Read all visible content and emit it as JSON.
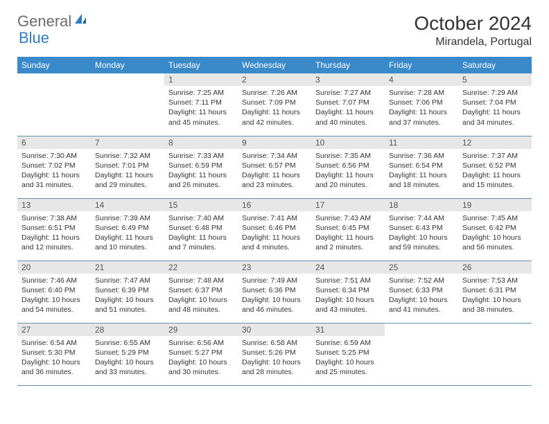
{
  "brand": {
    "part1": "General",
    "part2": "Blue"
  },
  "title": "October 2024",
  "location": "Mirandela, Portugal",
  "colors": {
    "header_bg": "#3a89c9",
    "header_text": "#ffffff",
    "daynum_bg": "#e7e7e7",
    "border": "#6b8fa8",
    "logo_gray": "#6b6b6b",
    "logo_blue": "#2f7bc4"
  },
  "weekdays": [
    "Sunday",
    "Monday",
    "Tuesday",
    "Wednesday",
    "Thursday",
    "Friday",
    "Saturday"
  ],
  "weeks": [
    [
      null,
      null,
      {
        "n": "1",
        "sr": "Sunrise: 7:25 AM",
        "ss": "Sunset: 7:11 PM",
        "dl": "Daylight: 11 hours and 45 minutes."
      },
      {
        "n": "2",
        "sr": "Sunrise: 7:26 AM",
        "ss": "Sunset: 7:09 PM",
        "dl": "Daylight: 11 hours and 42 minutes."
      },
      {
        "n": "3",
        "sr": "Sunrise: 7:27 AM",
        "ss": "Sunset: 7:07 PM",
        "dl": "Daylight: 11 hours and 40 minutes."
      },
      {
        "n": "4",
        "sr": "Sunrise: 7:28 AM",
        "ss": "Sunset: 7:06 PM",
        "dl": "Daylight: 11 hours and 37 minutes."
      },
      {
        "n": "5",
        "sr": "Sunrise: 7:29 AM",
        "ss": "Sunset: 7:04 PM",
        "dl": "Daylight: 11 hours and 34 minutes."
      }
    ],
    [
      {
        "n": "6",
        "sr": "Sunrise: 7:30 AM",
        "ss": "Sunset: 7:02 PM",
        "dl": "Daylight: 11 hours and 31 minutes."
      },
      {
        "n": "7",
        "sr": "Sunrise: 7:32 AM",
        "ss": "Sunset: 7:01 PM",
        "dl": "Daylight: 11 hours and 29 minutes."
      },
      {
        "n": "8",
        "sr": "Sunrise: 7:33 AM",
        "ss": "Sunset: 6:59 PM",
        "dl": "Daylight: 11 hours and 26 minutes."
      },
      {
        "n": "9",
        "sr": "Sunrise: 7:34 AM",
        "ss": "Sunset: 6:57 PM",
        "dl": "Daylight: 11 hours and 23 minutes."
      },
      {
        "n": "10",
        "sr": "Sunrise: 7:35 AM",
        "ss": "Sunset: 6:56 PM",
        "dl": "Daylight: 11 hours and 20 minutes."
      },
      {
        "n": "11",
        "sr": "Sunrise: 7:36 AM",
        "ss": "Sunset: 6:54 PM",
        "dl": "Daylight: 11 hours and 18 minutes."
      },
      {
        "n": "12",
        "sr": "Sunrise: 7:37 AM",
        "ss": "Sunset: 6:52 PM",
        "dl": "Daylight: 11 hours and 15 minutes."
      }
    ],
    [
      {
        "n": "13",
        "sr": "Sunrise: 7:38 AM",
        "ss": "Sunset: 6:51 PM",
        "dl": "Daylight: 11 hours and 12 minutes."
      },
      {
        "n": "14",
        "sr": "Sunrise: 7:39 AM",
        "ss": "Sunset: 6:49 PM",
        "dl": "Daylight: 11 hours and 10 minutes."
      },
      {
        "n": "15",
        "sr": "Sunrise: 7:40 AM",
        "ss": "Sunset: 6:48 PM",
        "dl": "Daylight: 11 hours and 7 minutes."
      },
      {
        "n": "16",
        "sr": "Sunrise: 7:41 AM",
        "ss": "Sunset: 6:46 PM",
        "dl": "Daylight: 11 hours and 4 minutes."
      },
      {
        "n": "17",
        "sr": "Sunrise: 7:43 AM",
        "ss": "Sunset: 6:45 PM",
        "dl": "Daylight: 11 hours and 2 minutes."
      },
      {
        "n": "18",
        "sr": "Sunrise: 7:44 AM",
        "ss": "Sunset: 6:43 PM",
        "dl": "Daylight: 10 hours and 59 minutes."
      },
      {
        "n": "19",
        "sr": "Sunrise: 7:45 AM",
        "ss": "Sunset: 6:42 PM",
        "dl": "Daylight: 10 hours and 56 minutes."
      }
    ],
    [
      {
        "n": "20",
        "sr": "Sunrise: 7:46 AM",
        "ss": "Sunset: 6:40 PM",
        "dl": "Daylight: 10 hours and 54 minutes."
      },
      {
        "n": "21",
        "sr": "Sunrise: 7:47 AM",
        "ss": "Sunset: 6:39 PM",
        "dl": "Daylight: 10 hours and 51 minutes."
      },
      {
        "n": "22",
        "sr": "Sunrise: 7:48 AM",
        "ss": "Sunset: 6:37 PM",
        "dl": "Daylight: 10 hours and 48 minutes."
      },
      {
        "n": "23",
        "sr": "Sunrise: 7:49 AM",
        "ss": "Sunset: 6:36 PM",
        "dl": "Daylight: 10 hours and 46 minutes."
      },
      {
        "n": "24",
        "sr": "Sunrise: 7:51 AM",
        "ss": "Sunset: 6:34 PM",
        "dl": "Daylight: 10 hours and 43 minutes."
      },
      {
        "n": "25",
        "sr": "Sunrise: 7:52 AM",
        "ss": "Sunset: 6:33 PM",
        "dl": "Daylight: 10 hours and 41 minutes."
      },
      {
        "n": "26",
        "sr": "Sunrise: 7:53 AM",
        "ss": "Sunset: 6:31 PM",
        "dl": "Daylight: 10 hours and 38 minutes."
      }
    ],
    [
      {
        "n": "27",
        "sr": "Sunrise: 6:54 AM",
        "ss": "Sunset: 5:30 PM",
        "dl": "Daylight: 10 hours and 36 minutes."
      },
      {
        "n": "28",
        "sr": "Sunrise: 6:55 AM",
        "ss": "Sunset: 5:29 PM",
        "dl": "Daylight: 10 hours and 33 minutes."
      },
      {
        "n": "29",
        "sr": "Sunrise: 6:56 AM",
        "ss": "Sunset: 5:27 PM",
        "dl": "Daylight: 10 hours and 30 minutes."
      },
      {
        "n": "30",
        "sr": "Sunrise: 6:58 AM",
        "ss": "Sunset: 5:26 PM",
        "dl": "Daylight: 10 hours and 28 minutes."
      },
      {
        "n": "31",
        "sr": "Sunrise: 6:59 AM",
        "ss": "Sunset: 5:25 PM",
        "dl": "Daylight: 10 hours and 25 minutes."
      },
      null,
      null
    ]
  ]
}
